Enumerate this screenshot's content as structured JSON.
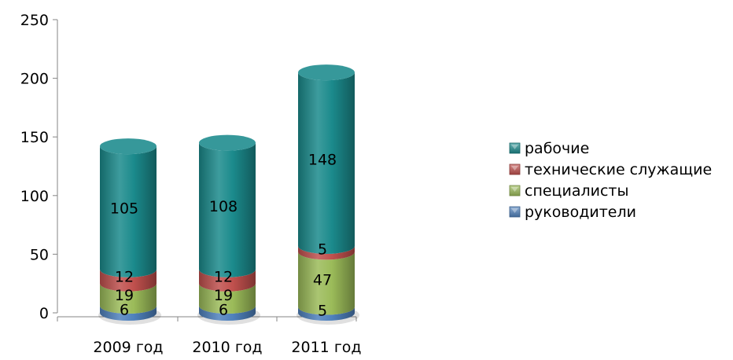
{
  "chart_data": {
    "type": "bar",
    "stacked": true,
    "style": "3d-cylinder",
    "title": "",
    "xlabel": "",
    "ylabel": "",
    "ylim": [
      0,
      250
    ],
    "yticks": [
      0,
      50,
      100,
      150,
      200,
      250
    ],
    "grid": false,
    "legend": "right",
    "categories": [
      "2009 год",
      "2010 год",
      "2011 год"
    ],
    "series": [
      {
        "name": "руководители",
        "values": [
          6,
          6,
          5
        ],
        "color": "#4f81bd"
      },
      {
        "name": "специалисты",
        "values": [
          19,
          19,
          47
        ],
        "color": "#9bbb59"
      },
      {
        "name": "технические служащие",
        "values": [
          12,
          12,
          5
        ],
        "color": "#c0504d"
      },
      {
        "name": "рабочие",
        "values": [
          105,
          108,
          148
        ],
        "color": "#1b8a8c"
      }
    ],
    "legend_order": [
      "рабочие",
      "технические служащие",
      "специалисты",
      "руководители"
    ]
  }
}
